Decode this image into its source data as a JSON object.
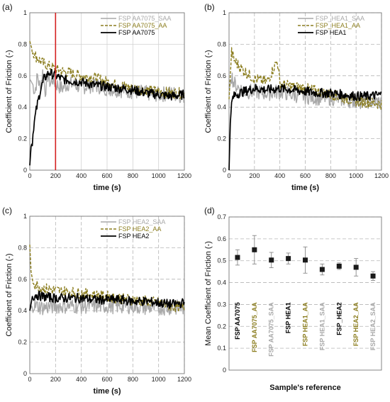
{
  "colors": {
    "saa": "#a8a8a8",
    "aa": "#8b7d1e",
    "base": "#000000",
    "marker": "#1a1a1a",
    "grid": "#d2d2d2",
    "dash": "#b5b5b5",
    "vline": "#d42020"
  },
  "chart_data": [
    {
      "panel_label": "(a)",
      "type": "line",
      "xlabel": "time (s)",
      "ylabel": "Coefficient of Friction (-)",
      "xlim": [
        0,
        1200
      ],
      "ylim": [
        0,
        1
      ],
      "xticks": [
        0,
        200,
        400,
        600,
        800,
        1000,
        1200
      ],
      "yticks": [
        0,
        0.2,
        0.4,
        0.6,
        0.8,
        1
      ],
      "ytick_labels": [
        "0",
        "0.2",
        "0.4",
        "0.6",
        "0.8",
        "1"
      ],
      "grid": "solid",
      "legend_position": "top-right",
      "vline_x": 200,
      "series": [
        {
          "name": "FSP AA7075_SAA",
          "style": "saa",
          "x": [
            0,
            20,
            40,
            60,
            80,
            100,
            120,
            140,
            160,
            180,
            200,
            250,
            300,
            400,
            500,
            600,
            700,
            800,
            900,
            1000,
            1100,
            1200
          ],
          "y": [
            0.58,
            0.55,
            0.5,
            0.6,
            0.52,
            0.62,
            0.5,
            0.6,
            0.55,
            0.58,
            0.55,
            0.52,
            0.55,
            0.53,
            0.54,
            0.52,
            0.51,
            0.5,
            0.49,
            0.48,
            0.49,
            0.47
          ]
        },
        {
          "name": "FSP AA7075_AA",
          "style": "aa",
          "x": [
            0,
            20,
            50,
            100,
            150,
            200,
            250,
            300,
            400,
            500,
            600,
            700,
            800,
            900,
            1000,
            1100,
            1200
          ],
          "y": [
            0.82,
            0.76,
            0.72,
            0.68,
            0.66,
            0.64,
            0.63,
            0.62,
            0.6,
            0.59,
            0.56,
            0.54,
            0.52,
            0.51,
            0.5,
            0.49,
            0.49
          ]
        },
        {
          "name": "FSP AA7075",
          "style": "base",
          "x": [
            0,
            10,
            20,
            30,
            50,
            80,
            110,
            150,
            200,
            250,
            300,
            400,
            500,
            600,
            700,
            800,
            900,
            1000,
            1100,
            1200
          ],
          "y": [
            0.03,
            0.15,
            0.18,
            0.28,
            0.38,
            0.5,
            0.58,
            0.62,
            0.6,
            0.58,
            0.57,
            0.56,
            0.54,
            0.53,
            0.52,
            0.51,
            0.49,
            0.48,
            0.47,
            0.48
          ]
        }
      ]
    },
    {
      "panel_label": "(b)",
      "type": "line",
      "xlabel": "time (s)",
      "ylabel": "Coefficient of Friction (-)",
      "xlim": [
        0,
        1200
      ],
      "ylim": [
        0,
        1
      ],
      "xticks": [
        0,
        200,
        400,
        600,
        800,
        1000,
        1200
      ],
      "yticks": [
        0,
        0.2,
        0.4,
        0.6,
        0.8,
        1
      ],
      "ytick_labels": [
        "0",
        "0.2",
        "0.4",
        "0.6",
        "0.8",
        "1"
      ],
      "grid": "dashed",
      "legend_position": "top-right",
      "series": [
        {
          "name": "FSP_HEA1_SAA",
          "style": "saa",
          "x": [
            0,
            20,
            40,
            80,
            120,
            200,
            300,
            400,
            500,
            600,
            700,
            800,
            900,
            1000,
            1100,
            1200
          ],
          "y": [
            0.5,
            0.6,
            0.55,
            0.52,
            0.5,
            0.5,
            0.49,
            0.5,
            0.48,
            0.47,
            0.46,
            0.46,
            0.45,
            0.44,
            0.44,
            0.43
          ]
        },
        {
          "name": "FSP_HEA1_AA",
          "style": "aa",
          "x": [
            0,
            20,
            40,
            80,
            120,
            200,
            300,
            380,
            400,
            450,
            500,
            600,
            700,
            800,
            900,
            1000,
            1100,
            1200
          ],
          "y": [
            0.45,
            0.75,
            0.7,
            0.66,
            0.63,
            0.58,
            0.56,
            0.7,
            0.55,
            0.54,
            0.53,
            0.52,
            0.5,
            0.48,
            0.46,
            0.44,
            0.43,
            0.42
          ]
        },
        {
          "name": "FSP HEA1",
          "style": "base",
          "x": [
            0,
            10,
            20,
            30,
            50,
            80,
            120,
            200,
            300,
            400,
            500,
            600,
            700,
            800,
            900,
            1000,
            1100,
            1200
          ],
          "y": [
            0.0,
            0.3,
            0.42,
            0.46,
            0.48,
            0.49,
            0.5,
            0.52,
            0.51,
            0.52,
            0.51,
            0.5,
            0.49,
            0.49,
            0.48,
            0.47,
            0.47,
            0.48
          ]
        }
      ]
    },
    {
      "panel_label": "(c)",
      "type": "line",
      "xlabel": "time (s)",
      "ylabel": "Coefficient of Friction (-)",
      "xlim": [
        0,
        1200
      ],
      "ylim": [
        0,
        1
      ],
      "xticks": [
        0,
        200,
        400,
        600,
        800,
        1000,
        1200
      ],
      "yticks": [
        0,
        0.2,
        0.4,
        0.6,
        0.8,
        1
      ],
      "ytick_labels": [
        "0",
        "0.2",
        "0.4",
        "0.6",
        "0.8",
        "1"
      ],
      "grid": "dashed",
      "legend_position": "top-right",
      "series": [
        {
          "name": "FSP HEA2_SAA",
          "style": "saa",
          "x": [
            0,
            20,
            50,
            100,
            200,
            300,
            400,
            500,
            600,
            700,
            800,
            900,
            1000,
            1100,
            1200
          ],
          "y": [
            0.4,
            0.44,
            0.43,
            0.42,
            0.43,
            0.43,
            0.43,
            0.43,
            0.43,
            0.43,
            0.43,
            0.42,
            0.42,
            0.42,
            0.42
          ]
        },
        {
          "name": "FSP HEA2_AA",
          "style": "aa",
          "x": [
            0,
            10,
            20,
            40,
            80,
            120,
            200,
            300,
            400,
            500,
            600,
            700,
            800,
            900,
            1000,
            1100,
            1200
          ],
          "y": [
            0.82,
            0.65,
            0.6,
            0.57,
            0.55,
            0.54,
            0.53,
            0.52,
            0.51,
            0.5,
            0.49,
            0.48,
            0.47,
            0.46,
            0.45,
            0.43,
            0.42
          ]
        },
        {
          "name": "FSP HEA2",
          "style": "base",
          "x": [
            0,
            20,
            50,
            100,
            200,
            300,
            400,
            500,
            600,
            700,
            800,
            900,
            1000,
            1100,
            1200
          ],
          "y": [
            0.4,
            0.49,
            0.5,
            0.49,
            0.48,
            0.48,
            0.48,
            0.47,
            0.47,
            0.47,
            0.46,
            0.46,
            0.45,
            0.44,
            0.45
          ]
        }
      ]
    },
    {
      "panel_label": "(d)",
      "type": "scatter",
      "xlabel": "Sample's reference",
      "ylabel": "Mean Coefficient of Friction (-)",
      "ylim": [
        0,
        0.7
      ],
      "yticks": [
        0,
        0.1,
        0.2,
        0.3,
        0.4,
        0.5,
        0.6,
        0.7
      ],
      "ytick_labels": [
        "0",
        "0.1",
        "0.2",
        "0.3",
        "0.4",
        "0.5",
        "0.6",
        "0.7"
      ],
      "grid": "dashed",
      "categories": [
        "FSP AA7075",
        "FSP AA7075_AA",
        "FSP AA7075_SAA",
        "FSP HEA1",
        "FSP HEA1_AA",
        "FSP HEA1_SAA",
        "FSP_HEA2",
        "FSP HEA2_AA",
        "FSP HEA2_SAA"
      ],
      "category_styles": [
        "base",
        "aa",
        "saa",
        "base",
        "aa",
        "saa",
        "base",
        "aa",
        "saa"
      ],
      "values": [
        0.515,
        0.55,
        0.503,
        0.51,
        0.503,
        0.46,
        0.475,
        0.47,
        0.43
      ],
      "errors": [
        0.035,
        0.065,
        0.035,
        0.025,
        0.06,
        0.025,
        0.015,
        0.04,
        0.02
      ]
    }
  ]
}
